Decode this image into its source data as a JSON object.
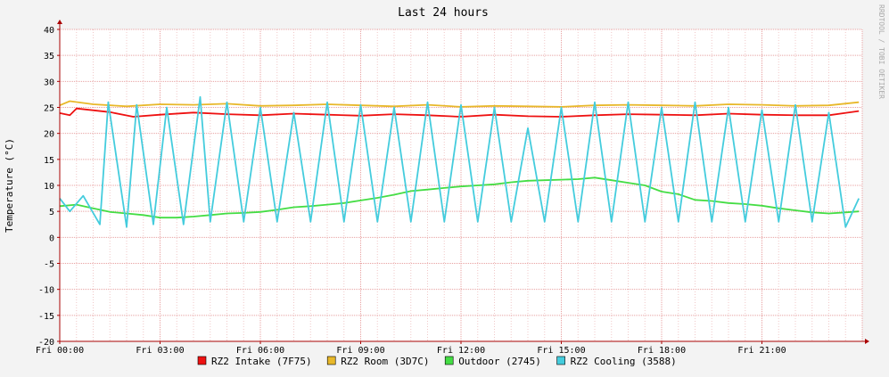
{
  "chart_data": {
    "type": "line",
    "title": "Last 24 hours",
    "ylabel": "Temperature (°C)",
    "watermark": "RRDTOOL / TOBI OETIKER",
    "ylim": [
      -20,
      40
    ],
    "y_ticks": [
      -20,
      -15,
      -10,
      -5,
      0,
      5,
      10,
      15,
      20,
      25,
      30,
      35,
      40
    ],
    "xlim_hours": [
      0,
      24
    ],
    "x_ticks": [
      {
        "label": "Fri 00:00",
        "hour": 0
      },
      {
        "label": "Fri 03:00",
        "hour": 3
      },
      {
        "label": "Fri 06:00",
        "hour": 6
      },
      {
        "label": "Fri 09:00",
        "hour": 9
      },
      {
        "label": "Fri 12:00",
        "hour": 12
      },
      {
        "label": "Fri 15:00",
        "hour": 15
      },
      {
        "label": "Fri 18:00",
        "hour": 18
      },
      {
        "label": "Fri 21:00",
        "hour": 21
      }
    ],
    "grid": true,
    "legend_position": "bottom",
    "series": [
      {
        "name": "RZ2 Intake (7F75)",
        "color": "#ee1111",
        "x": [
          0,
          0.3,
          0.5,
          1.5,
          2.2,
          3.0,
          4.0,
          5.0,
          6.0,
          7.0,
          8.0,
          9.0,
          10.0,
          11.0,
          12.0,
          13.0,
          14.0,
          15.0,
          16.0,
          17.0,
          18.0,
          19.0,
          20.0,
          21.0,
          22.0,
          23.0,
          23.9
        ],
        "y": [
          23.9,
          23.5,
          24.8,
          24.1,
          23.2,
          23.6,
          24.0,
          23.7,
          23.5,
          23.8,
          23.6,
          23.4,
          23.7,
          23.5,
          23.2,
          23.6,
          23.3,
          23.2,
          23.5,
          23.7,
          23.6,
          23.5,
          23.8,
          23.6,
          23.5,
          23.5,
          24.3
        ]
      },
      {
        "name": "RZ2 Room (3D7C)",
        "color": "#e8b82a",
        "x": [
          0,
          0.3,
          1.0,
          2.0,
          3.0,
          4.0,
          5.0,
          6.0,
          7.0,
          8.0,
          9.0,
          10.0,
          11.0,
          12.0,
          13.0,
          14.0,
          15.0,
          16.0,
          17.0,
          18.0,
          19.0,
          20.0,
          21.0,
          22.0,
          23.0,
          23.9
        ],
        "y": [
          25.4,
          26.2,
          25.6,
          25.2,
          25.6,
          25.5,
          25.7,
          25.3,
          25.4,
          25.6,
          25.4,
          25.2,
          25.5,
          25.1,
          25.3,
          25.2,
          25.1,
          25.4,
          25.5,
          25.4,
          25.3,
          25.6,
          25.5,
          25.3,
          25.4,
          26.0
        ]
      },
      {
        "name": "Outdoor (2745)",
        "color": "#44dd44",
        "x": [
          0,
          0.5,
          1.0,
          1.5,
          2.0,
          2.5,
          3.0,
          3.5,
          4.0,
          4.5,
          5.0,
          5.5,
          6.0,
          6.5,
          7.0,
          7.5,
          8.0,
          8.5,
          9.0,
          9.5,
          10.0,
          10.5,
          11.0,
          11.5,
          12.0,
          12.5,
          13.0,
          13.5,
          14.0,
          14.5,
          15.0,
          15.5,
          16.0,
          16.5,
          17.0,
          17.5,
          18.0,
          18.5,
          19.0,
          19.5,
          20.0,
          20.5,
          21.0,
          21.5,
          22.0,
          22.5,
          23.0,
          23.5,
          23.9
        ],
        "y": [
          6.0,
          6.3,
          5.6,
          4.9,
          4.6,
          4.3,
          3.8,
          3.8,
          4.0,
          4.3,
          4.6,
          4.7,
          4.9,
          5.3,
          5.8,
          6.0,
          6.3,
          6.6,
          7.1,
          7.6,
          8.2,
          8.9,
          9.2,
          9.5,
          9.8,
          10.0,
          10.2,
          10.6,
          10.9,
          11.0,
          11.1,
          11.2,
          11.5,
          11.0,
          10.5,
          10.0,
          8.8,
          8.3,
          7.2,
          7.0,
          6.6,
          6.4,
          6.1,
          5.6,
          5.2,
          4.8,
          4.6,
          4.8,
          5.0
        ]
      },
      {
        "name": "RZ2 Cooling (3588)",
        "color": "#44ccdd",
        "note": "cyclic 0–27 °C spikes",
        "x": [
          0,
          0.3,
          0.7,
          1.2,
          1.45,
          2.0,
          2.3,
          2.8,
          3.2,
          3.7,
          4.2,
          4.5,
          5.0,
          5.5,
          6.0,
          6.5,
          7.0,
          7.5,
          8.0,
          8.5,
          9.0,
          9.5,
          10.0,
          10.5,
          11.0,
          11.5,
          12.0,
          12.5,
          13.0,
          13.5,
          14.0,
          14.5,
          15.0,
          15.5,
          16.0,
          16.5,
          17.0,
          17.5,
          18.0,
          18.5,
          19.0,
          19.5,
          20.0,
          20.5,
          21.0,
          21.5,
          22.0,
          22.5,
          23.0,
          23.5,
          23.9
        ],
        "y": [
          7.5,
          5.0,
          8.0,
          2.5,
          26.0,
          2.0,
          25.5,
          2.5,
          25.0,
          2.5,
          27.0,
          3.0,
          26.0,
          3.0,
          25.0,
          3.0,
          24.0,
          3.0,
          26.0,
          3.0,
          25.5,
          3.0,
          25.0,
          3.0,
          26.0,
          3.0,
          25.5,
          3.0,
          25.0,
          3.0,
          21.0,
          3.0,
          25.0,
          3.0,
          26.0,
          3.0,
          26.0,
          3.0,
          25.0,
          3.0,
          26.0,
          3.0,
          25.0,
          3.0,
          24.5,
          3.0,
          25.5,
          3.0,
          24.0,
          2.0,
          7.5
        ]
      }
    ]
  }
}
